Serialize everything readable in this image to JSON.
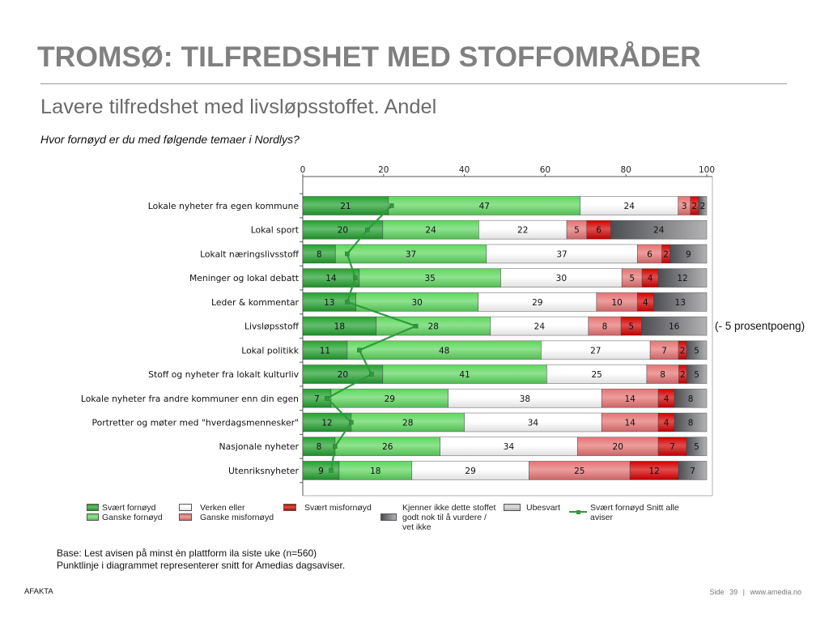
{
  "slide": {
    "title": "TROMSØ: TILFREDSHET MED STOFFOMRÅDER",
    "subtitle": "Lavere tilfredshet med livsløpsstoffet. Andel",
    "question": "Hvor fornøyd er du med følgende temaer i Nordlys?",
    "notes": [
      "Base: Lest avisen på minst èn plattform ila siste uke (n=560)",
      "Punktlinje i diagrammet representerer snitt for Amedias dagsaviser."
    ],
    "brand": "AFAKTA",
    "footer": {
      "page_label": "Side",
      "page_number": "39",
      "separator": "|",
      "site": "www.amedia.no"
    }
  },
  "chart_data": {
    "type": "bar",
    "orientation": "horizontal",
    "stacked": true,
    "xlim": [
      0,
      100
    ],
    "x_ticks": [
      0,
      20,
      40,
      60,
      80,
      100
    ],
    "grid": false,
    "legend_position": "bottom",
    "categories": [
      "Lokale nyheter fra egen kommune",
      "Lokal sport",
      "Lokalt næringslivsstoff",
      "Meninger og lokal debatt",
      "Leder & kommentar",
      "Livsløpsstoff",
      "Lokal politikk",
      "Stoff og nyheter fra lokalt kulturliv",
      "Lokale nyheter fra andre kommuner enn din egen",
      "Portretter og møter med \"hverdagsmennesker\"",
      "Nasjonale nyheter",
      "Utenriksnyheter"
    ],
    "series": [
      {
        "name": "Svært fornøyd",
        "color": "#23a02f",
        "values": [
          21,
          20,
          8,
          14,
          13,
          18,
          11,
          20,
          7,
          12,
          8,
          9
        ]
      },
      {
        "name": "Ganske fornøyd",
        "color": "#5ed65e",
        "values": [
          47,
          24,
          37,
          35,
          30,
          28,
          48,
          41,
          29,
          28,
          26,
          18
        ]
      },
      {
        "name": "Verken eller",
        "color": "#ffffff",
        "values": [
          24,
          22,
          37,
          30,
          29,
          24,
          27,
          25,
          38,
          34,
          34,
          29
        ]
      },
      {
        "name": "Ganske misfornøyd",
        "color": "#e57373",
        "values": [
          3,
          5,
          6,
          5,
          10,
          8,
          7,
          8,
          14,
          14,
          20,
          25
        ]
      },
      {
        "name": "Svært misfornøyd",
        "color": "#d40000",
        "values": [
          2,
          6,
          2,
          4,
          4,
          5,
          2,
          2,
          4,
          4,
          7,
          12
        ]
      },
      {
        "name": "Kjenner ikke dette stoffet godt nok til å vurdere / vet ikke",
        "color": "#55575b",
        "values": [
          2,
          24,
          9,
          12,
          13,
          16,
          5,
          5,
          8,
          8,
          5,
          7
        ]
      },
      {
        "name": "Ubesvart",
        "color": "#c9c9c9"
      }
    ],
    "line_series": {
      "name": "Svært fornøyd Snitt alle aviser",
      "color": "#2e9b3a",
      "values": [
        22,
        16,
        11,
        13,
        11,
        28,
        14,
        17,
        6,
        12,
        8,
        7
      ]
    },
    "annotation": {
      "category_index": 5,
      "text": "(- 5 prosentpoeng)"
    }
  }
}
